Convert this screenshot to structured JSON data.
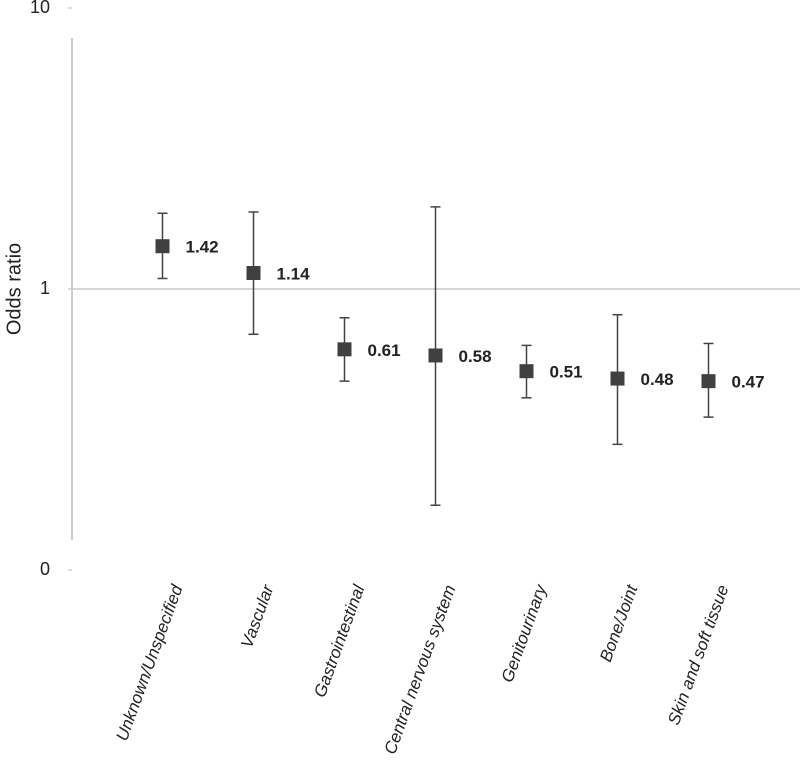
{
  "chart_data": {
    "type": "errorbar",
    "y_label": "Odds ratio",
    "categories": [
      "Unknown/Unspecified",
      "Vascular",
      "Gastrointestinal",
      "Central nervous system",
      "Genitourinary",
      "Bone/Joint",
      "Skin and soft tissue"
    ],
    "values": [
      1.42,
      1.14,
      0.61,
      0.58,
      0.51,
      0.48,
      0.47
    ],
    "low": [
      1.09,
      0.69,
      0.47,
      0.17,
      0.41,
      0.28,
      0.35
    ],
    "high": [
      1.86,
      1.88,
      0.79,
      1.96,
      0.63,
      0.81,
      0.64
    ],
    "color": "#404040",
    "log_scale": true,
    "ylim": [
      0.1,
      10
    ],
    "yticks": [
      {
        "value": 0.1,
        "label": "0"
      },
      1,
      10
    ],
    "reference_line": 1
  }
}
